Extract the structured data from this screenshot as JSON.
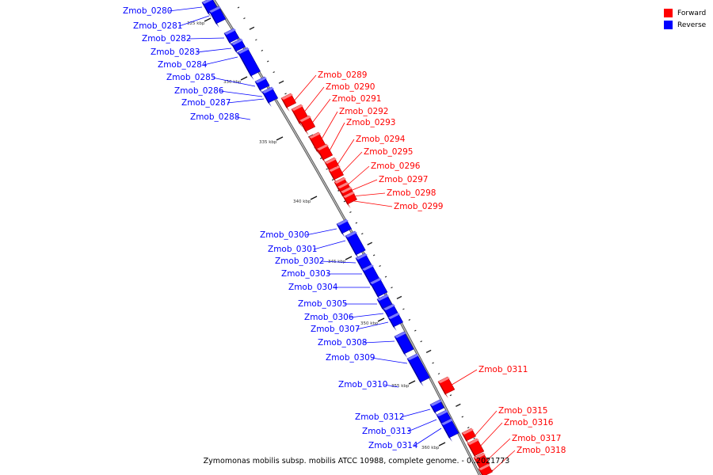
{
  "legend": [
    {
      "label": "Forward",
      "color": "#ff0000"
    },
    {
      "label": "Reverse",
      "color": "#0000ff"
    }
  ],
  "caption": "Zymomonas mobilis subsp. mobilis ATCC 10988, complete genome. - 0..2021773",
  "colors": {
    "forward": "#ff0000",
    "reverse": "#0000ff",
    "backbone": "#909090"
  },
  "ticks": [
    "325 kbp",
    "330 kbp",
    "335 kbp",
    "340 kbp",
    "345 kbp",
    "350 kbp",
    "355 kbp",
    "360 kbp"
  ],
  "genes": [
    {
      "name": "Zmob_0280",
      "strand": "reverse"
    },
    {
      "name": "Zmob_0281",
      "strand": "reverse"
    },
    {
      "name": "Zmob_0282",
      "strand": "reverse"
    },
    {
      "name": "Zmob_0283",
      "strand": "reverse"
    },
    {
      "name": "Zmob_0284",
      "strand": "reverse"
    },
    {
      "name": "Zmob_0285",
      "strand": "reverse"
    },
    {
      "name": "Zmob_0286",
      "strand": "reverse"
    },
    {
      "name": "Zmob_0287",
      "strand": "reverse"
    },
    {
      "name": "Zmob_0288",
      "strand": "reverse"
    },
    {
      "name": "Zmob_0289",
      "strand": "forward"
    },
    {
      "name": "Zmob_0290",
      "strand": "forward"
    },
    {
      "name": "Zmob_0291",
      "strand": "forward"
    },
    {
      "name": "Zmob_0292",
      "strand": "forward"
    },
    {
      "name": "Zmob_0293",
      "strand": "forward"
    },
    {
      "name": "Zmob_0294",
      "strand": "forward"
    },
    {
      "name": "Zmob_0295",
      "strand": "forward"
    },
    {
      "name": "Zmob_0296",
      "strand": "forward"
    },
    {
      "name": "Zmob_0297",
      "strand": "forward"
    },
    {
      "name": "Zmob_0298",
      "strand": "forward"
    },
    {
      "name": "Zmob_0299",
      "strand": "forward"
    },
    {
      "name": "Zmob_0300",
      "strand": "reverse"
    },
    {
      "name": "Zmob_0301",
      "strand": "reverse"
    },
    {
      "name": "Zmob_0302",
      "strand": "reverse"
    },
    {
      "name": "Zmob_0303",
      "strand": "reverse"
    },
    {
      "name": "Zmob_0304",
      "strand": "reverse"
    },
    {
      "name": "Zmob_0305",
      "strand": "reverse"
    },
    {
      "name": "Zmob_0306",
      "strand": "reverse"
    },
    {
      "name": "Zmob_0307",
      "strand": "reverse"
    },
    {
      "name": "Zmob_0308",
      "strand": "reverse"
    },
    {
      "name": "Zmob_0309",
      "strand": "reverse"
    },
    {
      "name": "Zmob_0310",
      "strand": "reverse"
    },
    {
      "name": "Zmob_0311",
      "strand": "forward"
    },
    {
      "name": "Zmob_0312",
      "strand": "reverse"
    },
    {
      "name": "Zmob_0313",
      "strand": "reverse"
    },
    {
      "name": "Zmob_0314",
      "strand": "reverse"
    },
    {
      "name": "Zmob_0315",
      "strand": "forward"
    },
    {
      "name": "Zmob_0316",
      "strand": "forward"
    },
    {
      "name": "Zmob_0317",
      "strand": "forward"
    },
    {
      "name": "Zmob_0318",
      "strand": "forward"
    }
  ]
}
